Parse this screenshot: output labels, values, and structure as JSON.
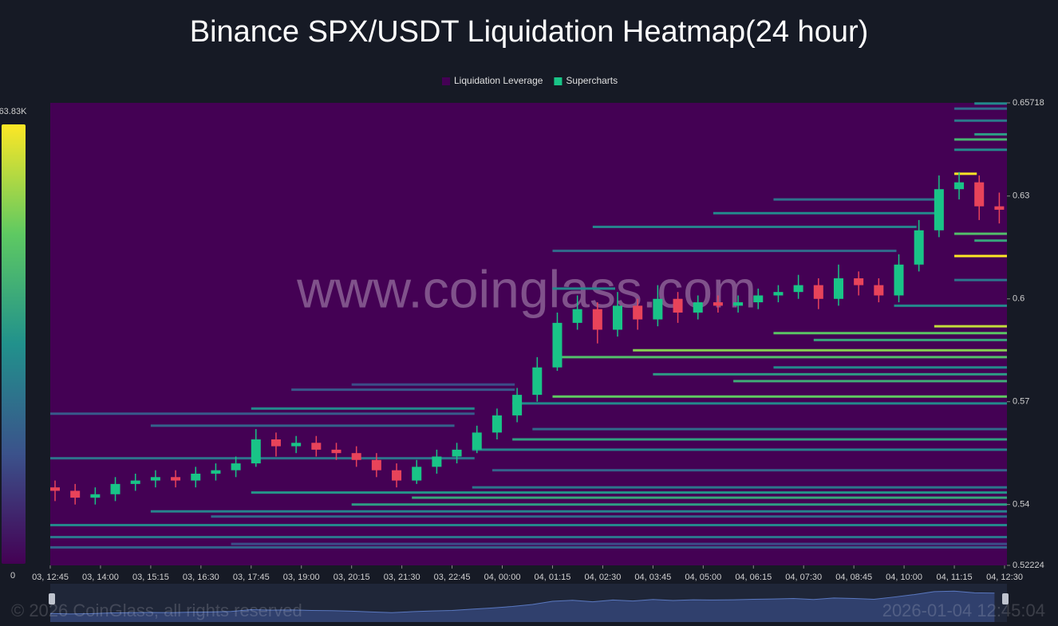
{
  "chart_data": {
    "type": "liquidation-heatmap",
    "title": "Binance SPX/USDT Liquidation Heatmap(24 hour)",
    "watermark": "www.coinglass.com",
    "footer_left": "© 2026 CoinGlass, all rights reserved",
    "footer_right": "2026-01-04 12:45:04",
    "ylim": [
      0.52224,
      0.65718
    ],
    "yticks": [
      0.65718,
      0.63,
      0.6,
      0.57,
      0.54,
      0.52224
    ],
    "xlim": [
      "03, 12:45",
      "04, 12:30"
    ],
    "xticks": [
      "03, 12:45",
      "03, 14:00",
      "03, 15:15",
      "03, 16:30",
      "03, 17:45",
      "03, 19:00",
      "03, 20:15",
      "03, 21:30",
      "03, 22:45",
      "04, 00:00",
      "04, 01:15",
      "04, 02:30",
      "04, 03:45",
      "04, 05:00",
      "04, 06:15",
      "04, 07:30",
      "04, 08:45",
      "04, 10:00",
      "04, 11:15",
      "04, 12:30"
    ],
    "clim": [
      0,
      63830
    ],
    "cticks": [
      {
        "value": 63830,
        "label": "63.83K"
      },
      0
    ],
    "colormap": [
      "#440154",
      "#3b528b",
      "#21918c",
      "#5ec962",
      "#fde725"
    ],
    "series": [
      {
        "name": "Liquidation Leverage",
        "type": "heatmap",
        "color": "#440154",
        "bands": [
          {
            "price": 0.5275,
            "start": "03, 12:45",
            "end": "04, 12:30",
            "value": 20000
          },
          {
            "price": 0.5285,
            "start": "03, 17:15",
            "end": "04, 12:30",
            "value": 15000
          },
          {
            "price": 0.5305,
            "start": "03, 12:45",
            "end": "04, 12:30",
            "value": 25000
          },
          {
            "price": 0.534,
            "start": "03, 12:45",
            "end": "04, 12:30",
            "value": 30000
          },
          {
            "price": 0.5365,
            "start": "03, 16:45",
            "end": "04, 12:30",
            "value": 22000
          },
          {
            "price": 0.538,
            "start": "03, 15:15",
            "end": "04, 12:30",
            "value": 28000
          },
          {
            "price": 0.54,
            "start": "03, 20:15",
            "end": "04, 12:30",
            "value": 35000
          },
          {
            "price": 0.542,
            "start": "03, 21:45",
            "end": "04, 12:30",
            "value": 38000
          },
          {
            "price": 0.5435,
            "start": "03, 17:45",
            "end": "04, 12:30",
            "value": 33000
          },
          {
            "price": 0.545,
            "start": "03, 23:15",
            "end": "04, 12:30",
            "value": 25000
          },
          {
            "price": 0.55,
            "start": "03, 23:45",
            "end": "04, 12:30",
            "value": 20000
          },
          {
            "price": 0.5535,
            "start": "03, 12:45",
            "end": "03, 23:15",
            "value": 24000
          },
          {
            "price": 0.556,
            "start": "03, 23:15",
            "end": "04, 12:30",
            "value": 28000
          },
          {
            "price": 0.559,
            "start": "04, 00:15",
            "end": "04, 12:30",
            "value": 36000
          },
          {
            "price": 0.562,
            "start": "04, 00:45",
            "end": "04, 12:30",
            "value": 22000
          },
          {
            "price": 0.563,
            "start": "03, 15:15",
            "end": "03, 22:45",
            "value": 20000
          },
          {
            "price": 0.5665,
            "start": "03, 12:45",
            "end": "03, 23:15",
            "value": 18000
          },
          {
            "price": 0.568,
            "start": "03, 17:45",
            "end": "03, 23:15",
            "value": 30000
          },
          {
            "price": 0.5695,
            "start": "04, 00:15",
            "end": "04, 12:30",
            "value": 30000
          },
          {
            "price": 0.5735,
            "start": "03, 18:45",
            "end": "04, 00:15",
            "value": 18000
          },
          {
            "price": 0.575,
            "start": "03, 20:15",
            "end": "04, 00:15",
            "value": 15000
          },
          {
            "price": 0.5715,
            "start": "04, 01:15",
            "end": "04, 12:30",
            "value": 48000
          },
          {
            "price": 0.576,
            "start": "04, 05:45",
            "end": "04, 12:30",
            "value": 40000
          },
          {
            "price": 0.578,
            "start": "04, 03:45",
            "end": "04, 12:30",
            "value": 35000
          },
          {
            "price": 0.58,
            "start": "04, 06:45",
            "end": "04, 12:30",
            "value": 30000
          },
          {
            "price": 0.583,
            "start": "04, 01:15",
            "end": "04, 12:30",
            "value": 45000
          },
          {
            "price": 0.585,
            "start": "04, 03:15",
            "end": "04, 12:30",
            "value": 52000
          },
          {
            "price": 0.588,
            "start": "04, 07:45",
            "end": "04, 12:30",
            "value": 38000
          },
          {
            "price": 0.59,
            "start": "04, 06:45",
            "end": "04, 12:30",
            "value": 47000
          },
          {
            "price": 0.592,
            "start": "04, 10:45",
            "end": "04, 12:30",
            "value": 58000
          },
          {
            "price": 0.598,
            "start": "04, 09:45",
            "end": "04, 12:30",
            "value": 30000
          },
          {
            "price": 0.603,
            "start": "04, 01:15",
            "end": "04, 02:45",
            "value": 30000
          },
          {
            "price": 0.6055,
            "start": "04, 11:15",
            "end": "04, 12:30",
            "value": 25000
          },
          {
            "price": 0.6125,
            "start": "04, 11:15",
            "end": "04, 12:30",
            "value": 63830
          },
          {
            "price": 0.614,
            "start": "04, 01:15",
            "end": "04, 09:45",
            "value": 22000
          },
          {
            "price": 0.617,
            "start": "04, 11:45",
            "end": "04, 12:30",
            "value": 38000
          },
          {
            "price": 0.619,
            "start": "04, 11:15",
            "end": "04, 12:30",
            "value": 45000
          },
          {
            "price": 0.621,
            "start": "04, 02:15",
            "end": "04, 10:15",
            "value": 28000
          },
          {
            "price": 0.625,
            "start": "04, 05:15",
            "end": "04, 10:45",
            "value": 30000
          },
          {
            "price": 0.629,
            "start": "04, 06:45",
            "end": "04, 10:45",
            "value": 24000
          },
          {
            "price": 0.6365,
            "start": "04, 11:15",
            "end": "04, 11:45",
            "value": 63830
          },
          {
            "price": 0.6435,
            "start": "04, 11:15",
            "end": "04, 12:30",
            "value": 30000
          },
          {
            "price": 0.6465,
            "start": "04, 11:15",
            "end": "04, 12:30",
            "value": 42000
          },
          {
            "price": 0.648,
            "start": "04, 11:45",
            "end": "04, 12:30",
            "value": 35000
          },
          {
            "price": 0.652,
            "start": "04, 11:15",
            "end": "04, 12:30",
            "value": 26000
          },
          {
            "price": 0.6555,
            "start": "04, 11:15",
            "end": "04, 12:30",
            "value": 22000
          },
          {
            "price": 0.657,
            "start": "04, 11:45",
            "end": "04, 12:30",
            "value": 30000
          }
        ]
      },
      {
        "name": "Supercharts",
        "type": "candlestick",
        "color": "#19c487",
        "up_color": "#19c487",
        "down_color": "#e8435a",
        "x": [
          "03, 12:45",
          "03, 13:15",
          "03, 13:45",
          "03, 14:15",
          "03, 14:45",
          "03, 15:15",
          "03, 15:45",
          "03, 16:15",
          "03, 16:45",
          "03, 17:15",
          "03, 17:45",
          "03, 18:15",
          "03, 18:45",
          "03, 19:15",
          "03, 19:45",
          "03, 20:15",
          "03, 20:45",
          "03, 21:15",
          "03, 21:45",
          "03, 22:15",
          "03, 22:45",
          "03, 23:15",
          "03, 23:45",
          "04, 00:15",
          "04, 00:45",
          "04, 01:15",
          "04, 01:45",
          "04, 02:15",
          "04, 02:45",
          "04, 03:15",
          "04, 03:45",
          "04, 04:15",
          "04, 04:45",
          "04, 05:15",
          "04, 05:45",
          "04, 06:15",
          "04, 06:45",
          "04, 07:15",
          "04, 07:45",
          "04, 08:15",
          "04, 08:45",
          "04, 09:15",
          "04, 09:45",
          "04, 10:15",
          "04, 10:45",
          "04, 11:15",
          "04, 11:45",
          "04, 12:15"
        ],
        "open": [
          0.545,
          0.544,
          0.542,
          0.543,
          0.546,
          0.547,
          0.548,
          0.547,
          0.549,
          0.55,
          0.552,
          0.559,
          0.557,
          0.558,
          0.556,
          0.555,
          0.553,
          0.55,
          0.547,
          0.551,
          0.554,
          0.556,
          0.561,
          0.566,
          0.572,
          0.58,
          0.593,
          0.597,
          0.591,
          0.598,
          0.594,
          0.6,
          0.596,
          0.599,
          0.598,
          0.599,
          0.601,
          0.602,
          0.604,
          0.6,
          0.606,
          0.604,
          0.601,
          0.61,
          0.62,
          0.632,
          0.634,
          0.627
        ],
        "high": [
          0.547,
          0.546,
          0.545,
          0.548,
          0.549,
          0.55,
          0.55,
          0.551,
          0.552,
          0.554,
          0.562,
          0.561,
          0.56,
          0.56,
          0.558,
          0.557,
          0.555,
          0.552,
          0.553,
          0.556,
          0.558,
          0.563,
          0.568,
          0.574,
          0.583,
          0.596,
          0.601,
          0.599,
          0.602,
          0.6,
          0.604,
          0.602,
          0.601,
          0.601,
          0.601,
          0.603,
          0.604,
          0.607,
          0.606,
          0.61,
          0.608,
          0.606,
          0.613,
          0.623,
          0.636,
          0.637,
          0.636,
          0.631
        ],
        "low": [
          0.541,
          0.54,
          0.54,
          0.541,
          0.544,
          0.545,
          0.545,
          0.545,
          0.547,
          0.548,
          0.551,
          0.554,
          0.555,
          0.554,
          0.553,
          0.551,
          0.548,
          0.545,
          0.546,
          0.549,
          0.552,
          0.555,
          0.559,
          0.564,
          0.57,
          0.579,
          0.591,
          0.587,
          0.589,
          0.591,
          0.592,
          0.593,
          0.594,
          0.596,
          0.596,
          0.597,
          0.599,
          0.6,
          0.597,
          0.598,
          0.601,
          0.599,
          0.599,
          0.608,
          0.618,
          0.629,
          0.623,
          0.622
        ],
        "close": [
          0.544,
          0.542,
          0.543,
          0.546,
          0.547,
          0.548,
          0.547,
          0.549,
          0.55,
          0.552,
          0.559,
          0.557,
          0.558,
          0.556,
          0.555,
          0.553,
          0.55,
          0.547,
          0.551,
          0.554,
          0.556,
          0.561,
          0.566,
          0.572,
          0.58,
          0.593,
          0.597,
          0.591,
          0.598,
          0.594,
          0.6,
          0.596,
          0.599,
          0.598,
          0.599,
          0.601,
          0.602,
          0.604,
          0.6,
          0.606,
          0.604,
          0.601,
          0.61,
          0.62,
          0.632,
          0.634,
          0.627,
          0.626
        ]
      }
    ]
  }
}
